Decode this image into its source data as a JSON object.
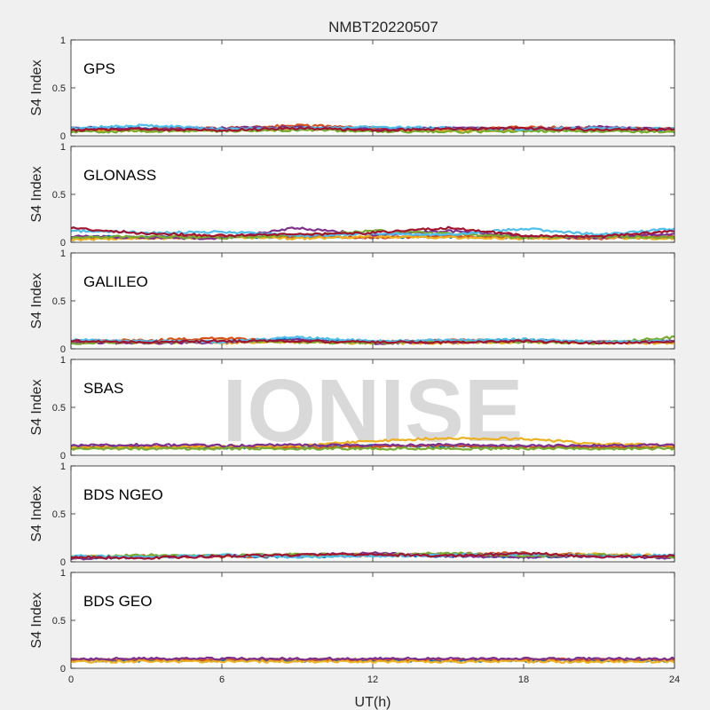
{
  "figure": {
    "title": "NMBT20220507",
    "xlabel": "UT(h)",
    "watermark": "IONISE"
  },
  "colors": {
    "series": [
      "#0072BD",
      "#D95319",
      "#EDB120",
      "#7E2F8E",
      "#77AC30",
      "#4DBEEE",
      "#A2142F"
    ],
    "axes": "#262626",
    "plot_bg": "#ffffff",
    "figure_bg": "#f0f0f0"
  },
  "chart_data": [
    {
      "type": "line",
      "label": "GPS",
      "ylabel": "S4 Index",
      "xlim": [
        0,
        24
      ],
      "ylim": [
        0,
        1
      ],
      "xticks": [
        "0",
        "6",
        "12",
        "18",
        "24"
      ],
      "yticks": [
        "0",
        "0.5",
        "1"
      ],
      "grid": false,
      "series": [
        {
          "x": [
            0,
            3,
            6,
            9,
            12,
            15,
            18,
            21,
            24
          ],
          "values": [
            0.07,
            0.08,
            0.06,
            0.09,
            0.07,
            0.08,
            0.06,
            0.07,
            0.06
          ]
        },
        {
          "x": [
            0,
            3,
            6,
            9,
            12,
            15,
            18,
            21,
            24
          ],
          "values": [
            0.06,
            0.07,
            0.08,
            0.11,
            0.08,
            0.06,
            0.09,
            0.08,
            0.07
          ]
        },
        {
          "x": [
            0,
            3,
            6,
            9,
            12,
            15,
            18,
            21,
            24
          ],
          "values": [
            0.05,
            0.06,
            0.06,
            0.07,
            0.06,
            0.05,
            0.06,
            0.07,
            0.06
          ]
        },
        {
          "x": [
            0,
            3,
            6,
            9,
            12,
            15,
            18,
            21,
            24
          ],
          "values": [
            0.09,
            0.07,
            0.08,
            0.09,
            0.07,
            0.08,
            0.07,
            0.09,
            0.07
          ]
        },
        {
          "x": [
            0,
            3,
            6,
            9,
            12,
            15,
            18,
            21,
            24
          ],
          "values": [
            0.04,
            0.05,
            0.05,
            0.06,
            0.05,
            0.04,
            0.05,
            0.05,
            0.04
          ]
        },
        {
          "x": [
            0,
            3,
            6,
            9,
            12,
            15,
            18,
            21,
            24
          ],
          "values": [
            0.08,
            0.11,
            0.07,
            0.08,
            0.09,
            0.08,
            0.07,
            0.08,
            0.07
          ]
        },
        {
          "x": [
            0,
            3,
            6,
            9,
            12,
            15,
            18,
            21,
            24
          ],
          "values": [
            0.06,
            0.07,
            0.06,
            0.08,
            0.06,
            0.07,
            0.08,
            0.06,
            0.07
          ]
        }
      ]
    },
    {
      "type": "line",
      "label": "GLONASS",
      "ylabel": "S4 Index",
      "xlim": [
        0,
        24
      ],
      "ylim": [
        0,
        1
      ],
      "xticks": [
        "0",
        "6",
        "12",
        "18",
        "24"
      ],
      "yticks": [
        "0",
        "0.5",
        "1"
      ],
      "grid": false,
      "series": [
        {
          "x": [
            0,
            3,
            6,
            9,
            12,
            15,
            18,
            21,
            24
          ],
          "values": [
            0.05,
            0.06,
            0.05,
            0.06,
            0.05,
            0.06,
            0.05,
            0.06,
            0.05
          ]
        },
        {
          "x": [
            0,
            3,
            6,
            9,
            12,
            15,
            18,
            21,
            24
          ],
          "values": [
            0.04,
            0.05,
            0.06,
            0.06,
            0.05,
            0.06,
            0.05,
            0.04,
            0.06
          ]
        },
        {
          "x": [
            0,
            3,
            6,
            9,
            12,
            15,
            18,
            21,
            24
          ],
          "values": [
            0.03,
            0.04,
            0.05,
            0.04,
            0.06,
            0.05,
            0.04,
            0.05,
            0.04
          ]
        },
        {
          "x": [
            0,
            3,
            6,
            9,
            12,
            15,
            18,
            21,
            24
          ],
          "values": [
            0.06,
            0.05,
            0.04,
            0.15,
            0.08,
            0.12,
            0.06,
            0.05,
            0.09
          ]
        },
        {
          "x": [
            0,
            3,
            6,
            9,
            12,
            15,
            18,
            21,
            24
          ],
          "values": [
            0.05,
            0.06,
            0.05,
            0.07,
            0.12,
            0.09,
            0.05,
            0.06,
            0.05
          ]
        },
        {
          "x": [
            0,
            3,
            6,
            9,
            12,
            15,
            18,
            21,
            24
          ],
          "values": [
            0.12,
            0.1,
            0.11,
            0.07,
            0.09,
            0.08,
            0.14,
            0.08,
            0.14
          ]
        },
        {
          "x": [
            0,
            3,
            6,
            9,
            12,
            15,
            18,
            21,
            24
          ],
          "values": [
            0.15,
            0.09,
            0.07,
            0.08,
            0.1,
            0.15,
            0.07,
            0.06,
            0.12
          ]
        }
      ]
    },
    {
      "type": "line",
      "label": "GALILEO",
      "ylabel": "S4 Index",
      "xlim": [
        0,
        24
      ],
      "ylim": [
        0,
        1
      ],
      "xticks": [
        "0",
        "6",
        "12",
        "18",
        "24"
      ],
      "yticks": [
        "0",
        "0.5",
        "1"
      ],
      "grid": false,
      "series": [
        {
          "x": [
            0,
            3,
            6,
            9,
            12,
            15,
            18,
            21,
            24
          ],
          "values": [
            0.07,
            0.08,
            0.08,
            0.1,
            0.07,
            0.08,
            0.09,
            0.07,
            0.08
          ]
        },
        {
          "x": [
            0,
            3,
            6,
            9,
            12,
            15,
            18,
            21,
            24
          ],
          "values": [
            0.08,
            0.09,
            0.11,
            0.08,
            0.07,
            0.09,
            0.08,
            0.07,
            0.07
          ]
        },
        {
          "x": [
            0,
            3,
            6,
            9,
            12,
            15,
            18,
            21,
            24
          ],
          "values": [
            0.06,
            0.07,
            0.06,
            0.07,
            0.06,
            0.06,
            0.07,
            0.06,
            0.06
          ]
        },
        {
          "x": [
            0,
            3,
            6,
            9,
            12,
            15,
            18,
            21,
            24
          ],
          "values": [
            0.07,
            0.06,
            0.07,
            0.09,
            0.06,
            0.07,
            0.08,
            0.07,
            0.08
          ]
        },
        {
          "x": [
            0,
            3,
            6,
            9,
            12,
            15,
            18,
            21,
            24
          ],
          "values": [
            0.06,
            0.07,
            0.08,
            0.07,
            0.06,
            0.08,
            0.07,
            0.06,
            0.12
          ]
        },
        {
          "x": [
            0,
            3,
            6,
            9,
            12,
            15,
            18,
            21,
            24
          ],
          "values": [
            0.09,
            0.08,
            0.07,
            0.12,
            0.08,
            0.09,
            0.1,
            0.07,
            0.08
          ]
        },
        {
          "x": [
            0,
            3,
            6,
            9,
            12,
            15,
            18,
            21,
            24
          ],
          "values": [
            0.08,
            0.07,
            0.08,
            0.08,
            0.07,
            0.07,
            0.08,
            0.06,
            0.07
          ]
        }
      ]
    },
    {
      "type": "line",
      "label": "SBAS",
      "ylabel": "S4 Index",
      "xlim": [
        0,
        24
      ],
      "ylim": [
        0,
        1
      ],
      "xticks": [
        "0",
        "6",
        "12",
        "18",
        "24"
      ],
      "yticks": [
        "0",
        "0.5",
        "1"
      ],
      "grid": false,
      "series": [
        {
          "x": [
            0,
            3,
            6,
            9,
            12,
            15,
            18,
            21,
            24
          ],
          "values": [
            0.09,
            0.09,
            0.08,
            0.09,
            0.1,
            0.09,
            0.09,
            0.08,
            0.09
          ]
        },
        {
          "x": [
            0,
            3,
            6,
            9,
            12,
            15,
            18,
            21,
            24
          ],
          "values": [
            0.08,
            0.09,
            0.09,
            0.08,
            0.09,
            0.1,
            0.09,
            0.08,
            0.09
          ]
        },
        {
          "x": [
            0,
            3,
            6,
            9,
            12,
            15,
            18,
            21,
            24
          ],
          "values": [
            0.08,
            0.08,
            0.09,
            0.1,
            0.15,
            0.18,
            0.17,
            0.12,
            0.1
          ]
        },
        {
          "x": [
            0,
            3,
            6,
            9,
            12,
            15,
            18,
            21,
            24
          ],
          "values": [
            0.1,
            0.11,
            0.1,
            0.11,
            0.1,
            0.11,
            0.1,
            0.1,
            0.11
          ]
        },
        {
          "x": [
            0,
            3,
            6,
            9,
            12,
            15,
            18,
            21,
            24
          ],
          "values": [
            0.07,
            0.07,
            0.07,
            0.07,
            0.07,
            0.07,
            0.07,
            0.07,
            0.07
          ]
        }
      ]
    },
    {
      "type": "line",
      "label": "BDS NGEO",
      "ylabel": "S4 Index",
      "xlim": [
        0,
        24
      ],
      "ylim": [
        0,
        1
      ],
      "xticks": [
        "0",
        "6",
        "12",
        "18",
        "24"
      ],
      "yticks": [
        "0",
        "0.5",
        "1"
      ],
      "grid": false,
      "series": [
        {
          "x": [
            0,
            3,
            6,
            9,
            12,
            15,
            18,
            21,
            24
          ],
          "values": [
            0.05,
            0.04,
            0.06,
            0.05,
            0.07,
            0.06,
            0.05,
            0.06,
            0.05
          ]
        },
        {
          "x": [
            0,
            3,
            6,
            9,
            12,
            15,
            18,
            21,
            24
          ],
          "values": [
            0.04,
            0.06,
            0.05,
            0.07,
            0.06,
            0.08,
            0.09,
            0.07,
            0.05
          ]
        },
        {
          "x": [
            0,
            3,
            6,
            9,
            12,
            15,
            18,
            21,
            24
          ],
          "values": [
            0.06,
            0.05,
            0.07,
            0.06,
            0.08,
            0.07,
            0.06,
            0.08,
            0.06
          ]
        },
        {
          "x": [
            0,
            3,
            6,
            9,
            12,
            15,
            18,
            21,
            24
          ],
          "values": [
            0.03,
            0.05,
            0.06,
            0.07,
            0.09,
            0.06,
            0.05,
            0.06,
            0.04
          ]
        },
        {
          "x": [
            0,
            3,
            6,
            9,
            12,
            15,
            18,
            21,
            24
          ],
          "values": [
            0.05,
            0.07,
            0.06,
            0.08,
            0.07,
            0.09,
            0.06,
            0.07,
            0.05
          ]
        },
        {
          "x": [
            0,
            3,
            6,
            9,
            12,
            15,
            18,
            21,
            24
          ],
          "values": [
            0.06,
            0.05,
            0.07,
            0.05,
            0.06,
            0.07,
            0.08,
            0.06,
            0.07
          ]
        },
        {
          "x": [
            0,
            3,
            6,
            9,
            12,
            15,
            18,
            21,
            24
          ],
          "values": [
            0.05,
            0.04,
            0.06,
            0.07,
            0.08,
            0.06,
            0.09,
            0.05,
            0.06
          ]
        }
      ]
    },
    {
      "type": "line",
      "label": "BDS GEO",
      "ylabel": "S4 Index",
      "xlim": [
        0,
        24
      ],
      "ylim": [
        0,
        1
      ],
      "xticks": [
        "0",
        "6",
        "12",
        "18",
        "24"
      ],
      "yticks": [
        "0",
        "0.5",
        "1"
      ],
      "grid": false,
      "series": [
        {
          "x": [
            0,
            3,
            6,
            9,
            12,
            15,
            18,
            21,
            24
          ],
          "values": [
            0.08,
            0.08,
            0.08,
            0.08,
            0.08,
            0.08,
            0.08,
            0.08,
            0.08
          ]
        },
        {
          "x": [
            0,
            3,
            6,
            9,
            12,
            15,
            18,
            21,
            24
          ],
          "values": [
            0.09,
            0.09,
            0.09,
            0.09,
            0.09,
            0.09,
            0.09,
            0.09,
            0.09
          ]
        },
        {
          "x": [
            0,
            3,
            6,
            9,
            12,
            15,
            18,
            21,
            24
          ],
          "values": [
            0.07,
            0.07,
            0.07,
            0.07,
            0.07,
            0.07,
            0.07,
            0.07,
            0.07
          ]
        },
        {
          "x": [
            0,
            3,
            6,
            9,
            12,
            15,
            18,
            21,
            24
          ],
          "values": [
            0.1,
            0.1,
            0.1,
            0.1,
            0.1,
            0.1,
            0.1,
            0.1,
            0.1
          ]
        }
      ]
    }
  ]
}
